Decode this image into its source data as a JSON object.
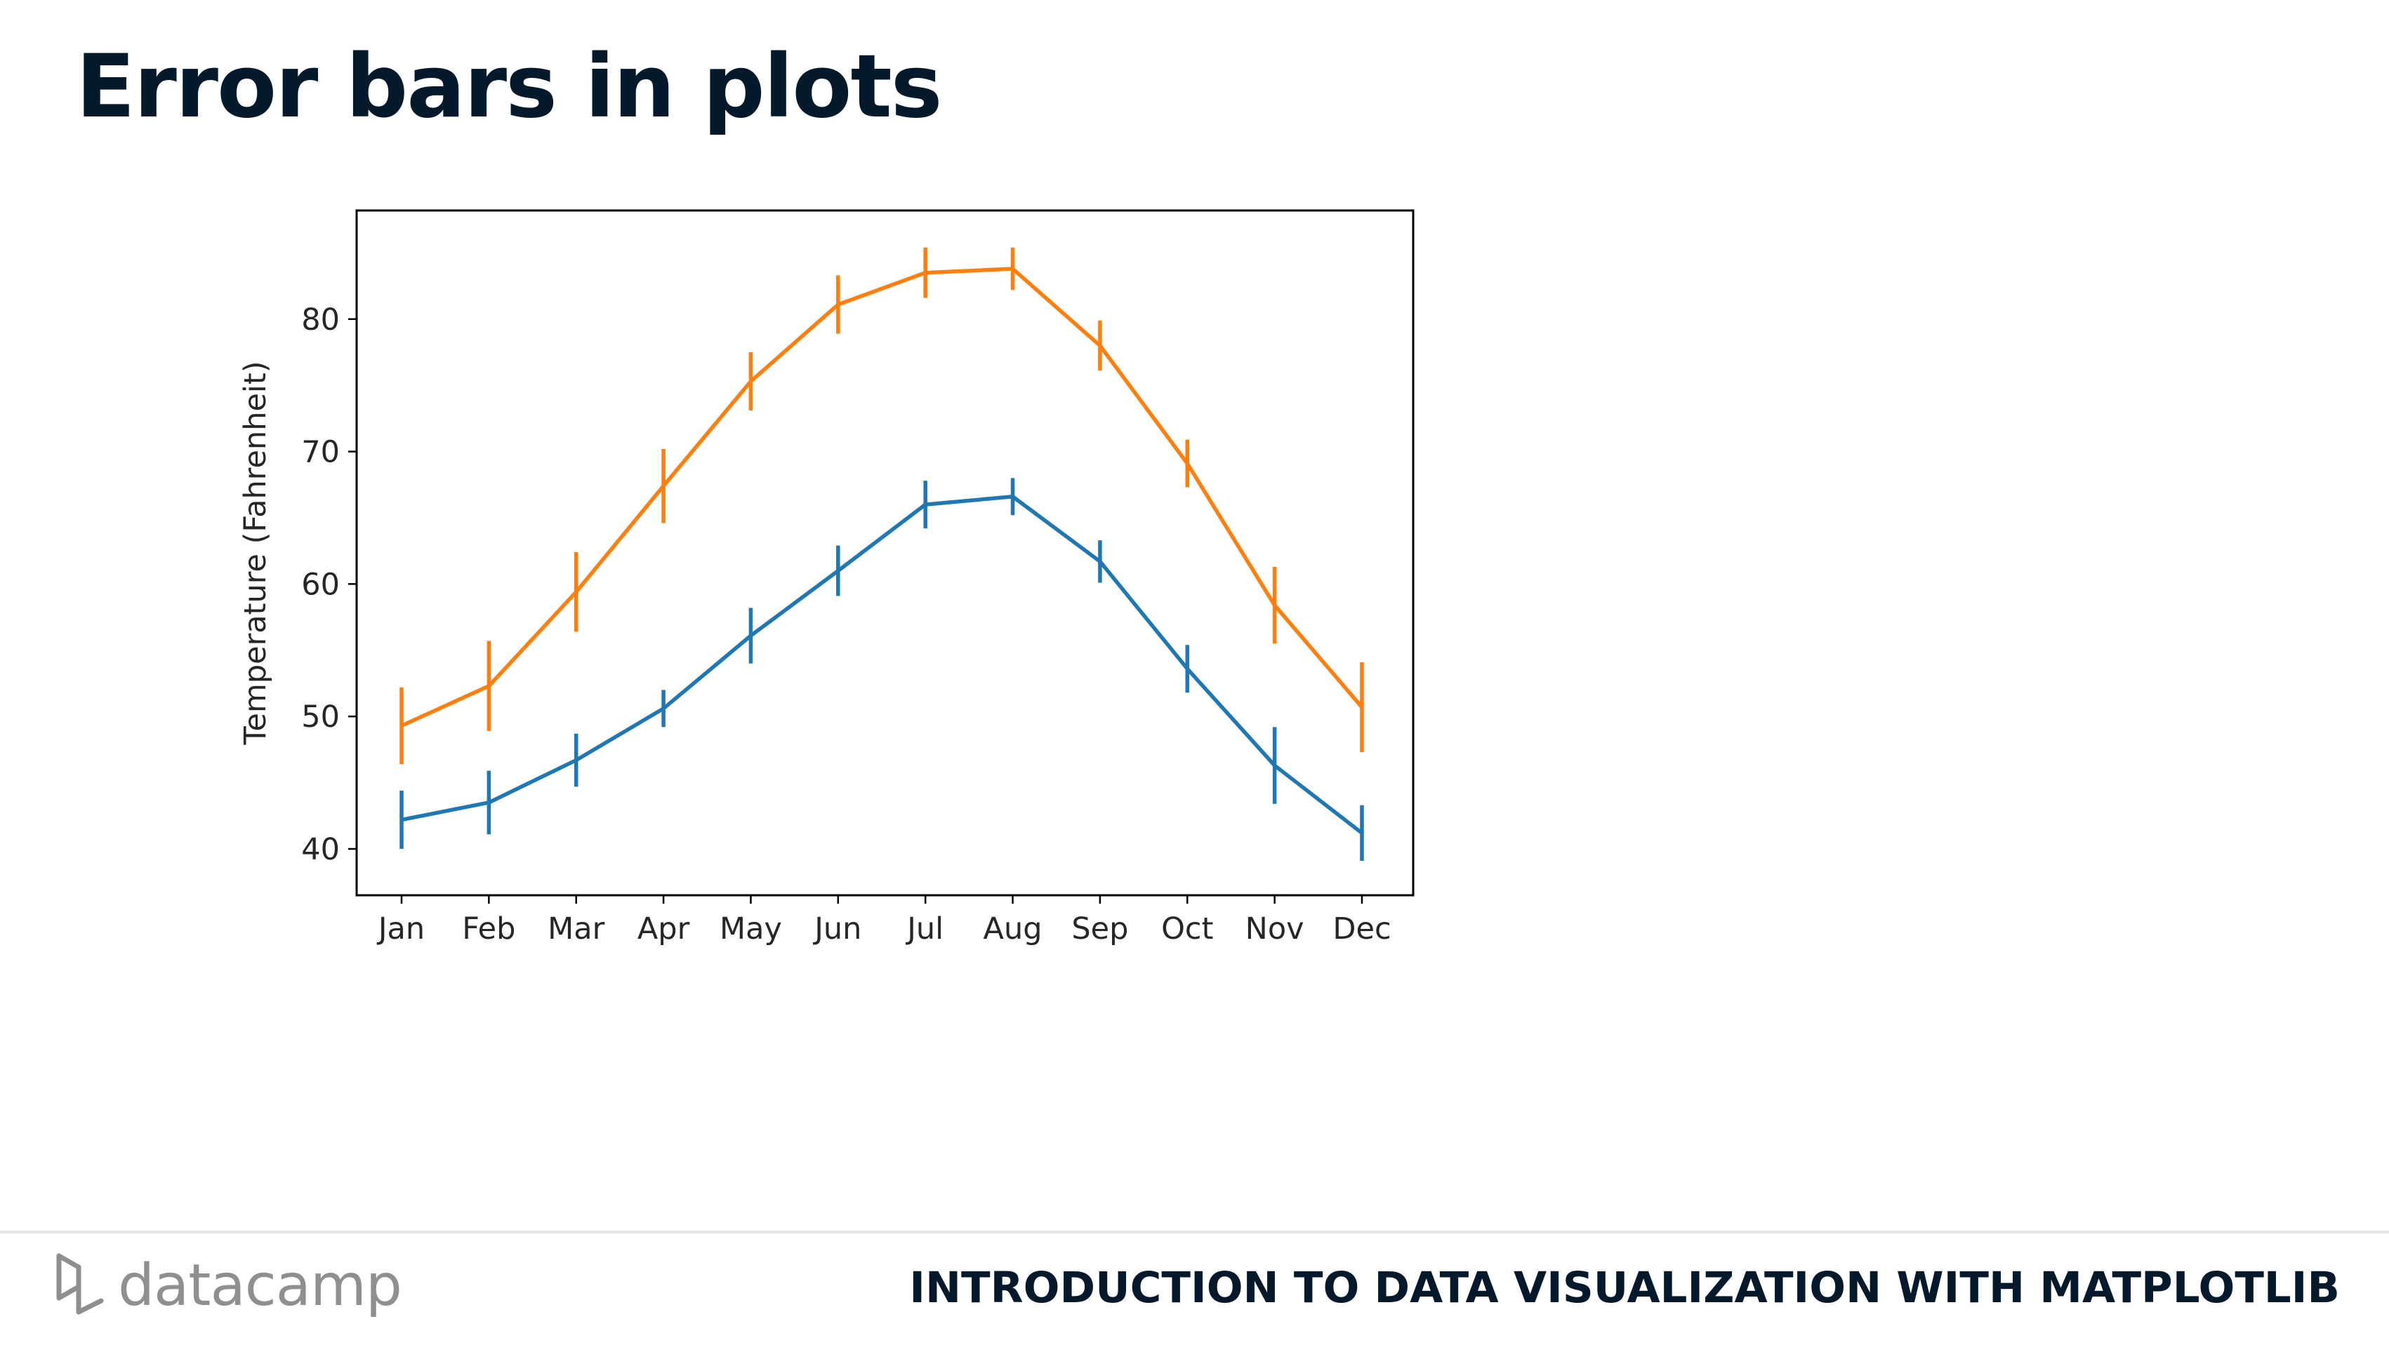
{
  "slide": {
    "title": "Error bars in plots"
  },
  "footer": {
    "brand": "datacamp",
    "course": "INTRODUCTION TO DATA VISUALIZATION WITH MATPLOTLIB"
  },
  "colors": {
    "series_1": "#1f77b4",
    "series_2": "#ff7f0e",
    "title": "#05192d"
  },
  "chart_data": {
    "type": "line",
    "error_bars": true,
    "title": "",
    "xlabel": "",
    "ylabel": "Temperature (Fahrenheit)",
    "categories": [
      "Jan",
      "Feb",
      "Mar",
      "Apr",
      "May",
      "Jun",
      "Jul",
      "Aug",
      "Sep",
      "Oct",
      "Nov",
      "Dec"
    ],
    "yticks": [
      40,
      50,
      60,
      70,
      80
    ],
    "ylim": [
      36.5,
      88.2
    ],
    "grid": false,
    "series": [
      {
        "color": "#1f77b4",
        "values": [
          42.2,
          43.5,
          46.7,
          50.6,
          56.1,
          61.0,
          66.0,
          66.6,
          61.7,
          53.6,
          46.3,
          41.2
        ],
        "errors": [
          2.2,
          2.4,
          2.0,
          1.4,
          2.1,
          1.9,
          1.8,
          1.4,
          1.6,
          1.8,
          2.9,
          2.1
        ]
      },
      {
        "color": "#ff7f0e",
        "values": [
          49.3,
          52.3,
          59.4,
          67.4,
          75.3,
          81.1,
          83.5,
          83.8,
          78.0,
          69.1,
          58.4,
          50.7
        ],
        "errors": [
          2.9,
          3.4,
          3.0,
          2.8,
          2.2,
          2.2,
          1.9,
          1.6,
          1.9,
          1.8,
          2.9,
          3.4
        ]
      }
    ]
  }
}
